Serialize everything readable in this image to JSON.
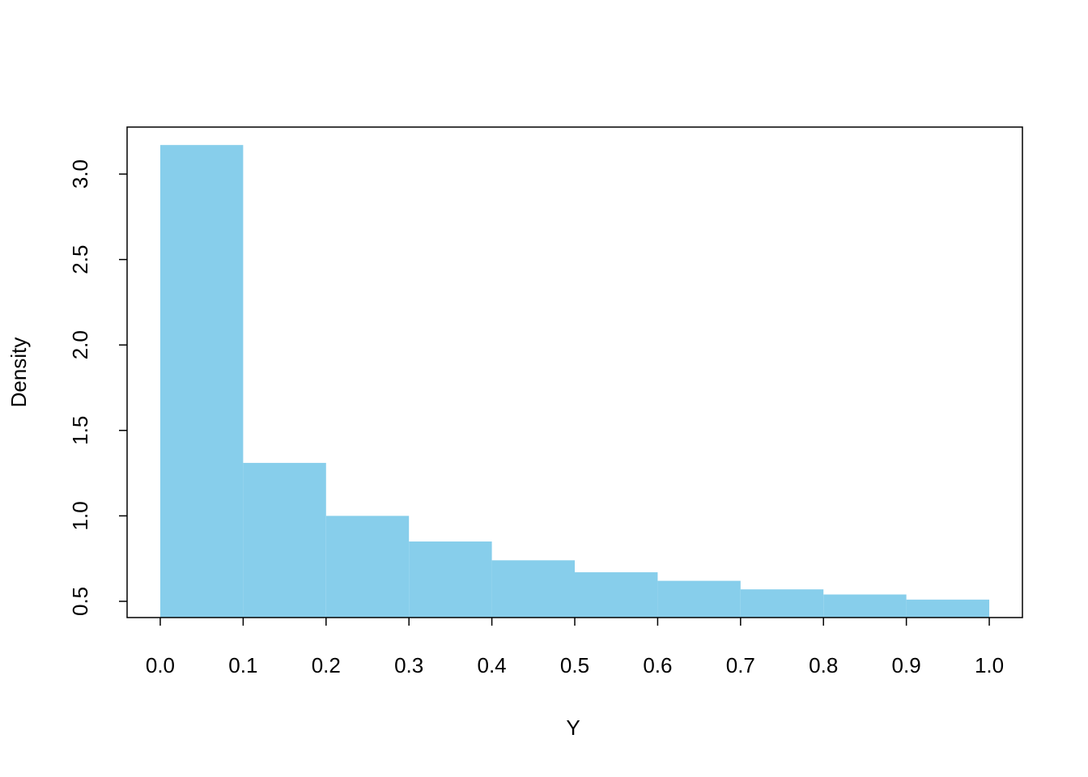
{
  "chart_data": {
    "type": "histogram",
    "xlabel": "Y",
    "ylabel": "Density",
    "bins": [
      0,
      0.1,
      0.2,
      0.3,
      0.4,
      0.5,
      0.6,
      0.7,
      0.8,
      0.9,
      1.0
    ],
    "values": [
      3.17,
      1.31,
      1.0,
      0.85,
      0.74,
      0.67,
      0.62,
      0.57,
      0.54,
      0.51
    ],
    "color": "#87ceeb",
    "xlim": [
      -0.04,
      1.04
    ],
    "xticks": [
      {
        "value": 0,
        "label": "0.0"
      },
      0.1,
      0.2,
      0.3,
      0.4,
      0.5,
      0.6,
      0.7,
      0.8,
      0.9,
      {
        "value": 1,
        "label": "1.0"
      }
    ],
    "ylim": [
      0.405,
      3.275
    ],
    "yticks": [
      0.5,
      {
        "value": 1,
        "label": "1.0"
      },
      1.5,
      {
        "value": 2,
        "label": "2.0"
      },
      2.5,
      {
        "value": 3,
        "label": "3.0"
      }
    ]
  }
}
